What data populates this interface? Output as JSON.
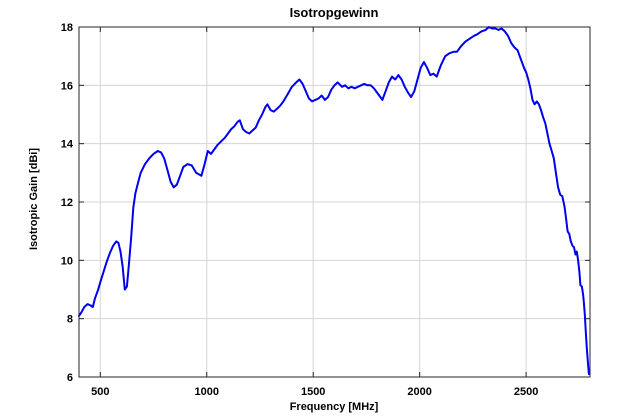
{
  "chart_data": {
    "type": "line",
    "title": "Isotropgewinn",
    "xlabel": "Frequency [MHz]",
    "ylabel": "Isotropic Gain [dBi]",
    "xlim": [
      400,
      2800
    ],
    "ylim": [
      6,
      18
    ],
    "x_ticks": [
      500,
      1000,
      1500,
      2000,
      2500
    ],
    "y_ticks": [
      6,
      8,
      10,
      12,
      14,
      16,
      18
    ],
    "grid": true,
    "legend": "none",
    "line_color": "#0000EE",
    "grid_color": "#D4D4D4",
    "axis_color": "#262626",
    "background_color": "#FFFFFF",
    "series": [
      {
        "name": "isotropic-gain",
        "x": [
          400,
          410,
          425,
          440,
          455,
          465,
          475,
          490,
          500,
          515,
          530,
          545,
          560,
          575,
          585,
          595,
          605,
          615,
          625,
          635,
          645,
          655,
          665,
          675,
          690,
          710,
          730,
          750,
          770,
          785,
          800,
          815,
          830,
          845,
          860,
          875,
          890,
          910,
          930,
          950,
          975,
          990,
          1005,
          1020,
          1035,
          1050,
          1070,
          1085,
          1100,
          1115,
          1130,
          1145,
          1155,
          1170,
          1185,
          1200,
          1215,
          1230,
          1245,
          1260,
          1275,
          1285,
          1300,
          1315,
          1330,
          1345,
          1360,
          1380,
          1400,
          1420,
          1435,
          1450,
          1465,
          1480,
          1495,
          1510,
          1525,
          1540,
          1555,
          1570,
          1585,
          1600,
          1615,
          1635,
          1650,
          1665,
          1680,
          1695,
          1710,
          1725,
          1740,
          1755,
          1770,
          1785,
          1800,
          1815,
          1825,
          1840,
          1855,
          1870,
          1885,
          1900,
          1915,
          1930,
          1945,
          1960,
          1975,
          1990,
          2005,
          2020,
          2035,
          2050,
          2065,
          2080,
          2100,
          2120,
          2140,
          2160,
          2175,
          2195,
          2215,
          2235,
          2255,
          2270,
          2290,
          2310,
          2325,
          2340,
          2355,
          2370,
          2385,
          2400,
          2415,
          2430,
          2445,
          2460,
          2475,
          2490,
          2500,
          2510,
          2520,
          2530,
          2540,
          2550,
          2560,
          2570,
          2580,
          2590,
          2600,
          2610,
          2620,
          2630,
          2640,
          2650,
          2660,
          2670,
          2680,
          2688,
          2695,
          2703,
          2710,
          2718,
          2725,
          2732,
          2738,
          2744,
          2750,
          2755,
          2762,
          2768,
          2772,
          2776,
          2780,
          2785,
          2790,
          2795
        ],
        "y": [
          8.1,
          8.2,
          8.4,
          8.5,
          8.45,
          8.4,
          8.7,
          9.0,
          9.25,
          9.6,
          9.95,
          10.25,
          10.5,
          10.65,
          10.6,
          10.3,
          9.8,
          9.0,
          9.1,
          9.9,
          10.8,
          11.8,
          12.3,
          12.6,
          13.0,
          13.3,
          13.5,
          13.65,
          13.75,
          13.7,
          13.5,
          13.1,
          12.7,
          12.5,
          12.6,
          12.9,
          13.2,
          13.3,
          13.25,
          13.0,
          12.9,
          13.3,
          13.75,
          13.65,
          13.8,
          13.95,
          14.1,
          14.2,
          14.35,
          14.5,
          14.6,
          14.75,
          14.8,
          14.5,
          14.4,
          14.35,
          14.45,
          14.55,
          14.8,
          15.0,
          15.25,
          15.35,
          15.15,
          15.1,
          15.2,
          15.3,
          15.45,
          15.7,
          15.95,
          16.1,
          16.2,
          16.05,
          15.8,
          15.55,
          15.45,
          15.5,
          15.55,
          15.65,
          15.5,
          15.6,
          15.85,
          16.0,
          16.1,
          15.95,
          16.0,
          15.9,
          15.95,
          15.9,
          15.95,
          16.0,
          16.05,
          16.0,
          16.0,
          15.9,
          15.75,
          15.6,
          15.5,
          15.8,
          16.1,
          16.3,
          16.2,
          16.35,
          16.2,
          15.95,
          15.75,
          15.6,
          15.8,
          16.2,
          16.6,
          16.8,
          16.6,
          16.35,
          16.4,
          16.3,
          16.7,
          17.0,
          17.1,
          17.15,
          17.15,
          17.35,
          17.5,
          17.6,
          17.7,
          17.75,
          17.85,
          17.9,
          18.0,
          17.95,
          17.95,
          17.9,
          17.95,
          17.85,
          17.7,
          17.45,
          17.3,
          17.2,
          16.9,
          16.6,
          16.45,
          16.2,
          15.9,
          15.5,
          15.35,
          15.45,
          15.35,
          15.15,
          14.9,
          14.7,
          14.35,
          14.0,
          13.75,
          13.5,
          13.0,
          12.5,
          12.25,
          12.2,
          11.85,
          11.4,
          11.0,
          10.9,
          10.65,
          10.5,
          10.45,
          10.2,
          10.3,
          10.0,
          9.6,
          9.15,
          9.1,
          8.8,
          8.5,
          8.1,
          7.6,
          7.0,
          6.5,
          6.1
        ]
      }
    ]
  }
}
